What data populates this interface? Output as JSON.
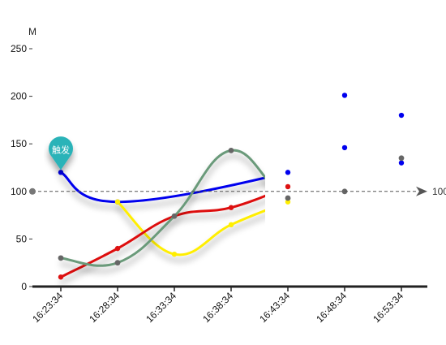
{
  "chart_data": {
    "type": "line",
    "ylabel": "M",
    "ylim": [
      0,
      250
    ],
    "yticks": [
      0,
      50,
      100,
      150,
      200,
      250
    ],
    "categories": [
      "16:23:34",
      "16:28:34",
      "16:33:34",
      "16:38:34",
      "16:43:34",
      "16:48:34",
      "16:53:34"
    ],
    "series": [
      {
        "color": "#0000ee",
        "points": [
          [
            0,
            120
          ],
          [
            1,
            89
          ],
          [
            4,
            120
          ],
          [
            5,
            146
          ],
          [
            5,
            201
          ],
          [
            6,
            130
          ],
          [
            6,
            180
          ]
        ]
      },
      {
        "color": "#ffee00",
        "points": [
          [
            1,
            89
          ],
          [
            2,
            34
          ],
          [
            3,
            65
          ],
          [
            4,
            89
          ]
        ]
      },
      {
        "color": "#dd1111",
        "points": [
          [
            0,
            10
          ],
          [
            1,
            40
          ],
          [
            2,
            74
          ],
          [
            3,
            83
          ],
          [
            4,
            105
          ]
        ]
      },
      {
        "color": "#6a9a7a",
        "points": [
          [
            0,
            30
          ],
          [
            1,
            25
          ],
          [
            2,
            74
          ],
          [
            3,
            143
          ],
          [
            4,
            93
          ],
          [
            5,
            100
          ],
          [
            6,
            135
          ]
        ]
      }
    ],
    "mark_line": {
      "value": 100,
      "label": "100",
      "color": "#555555"
    },
    "mark_point": {
      "label": "触发",
      "category_index": 0,
      "value": 120,
      "color": "#2bb3b8"
    },
    "axis_color_gradient": [
      "#ff0000",
      "#0000ff"
    ],
    "grid": false,
    "legend": "none",
    "line_style": "smooth"
  }
}
